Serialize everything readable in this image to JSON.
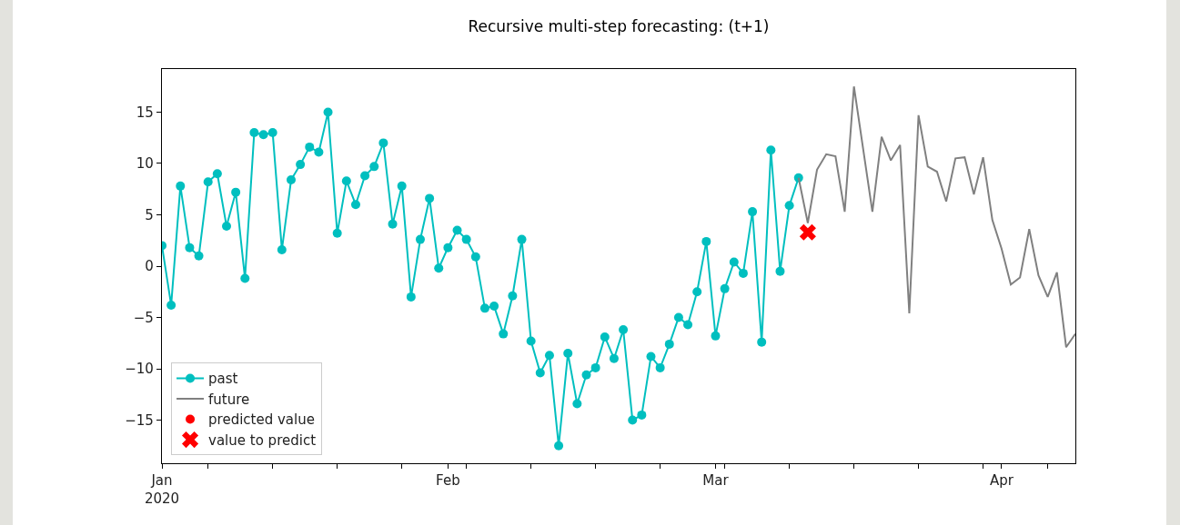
{
  "chart_data": {
    "type": "line",
    "title": "Recursive multi-step forecasting: (t+1)",
    "xlim": [
      "2020-01-01",
      "2020-04-09"
    ],
    "xticks": [
      {
        "value": "2020-01-01",
        "label": "Jan\n2020"
      },
      {
        "value": "2020-01-06",
        "label": null
      },
      {
        "value": "2020-01-13",
        "label": null
      },
      {
        "value": "2020-01-20",
        "label": null
      },
      {
        "value": "2020-01-27",
        "label": null
      },
      {
        "value": "2020-02-01",
        "label": "Feb"
      },
      {
        "value": "2020-02-03",
        "label": null
      },
      {
        "value": "2020-02-10",
        "label": null
      },
      {
        "value": "2020-02-17",
        "label": null
      },
      {
        "value": "2020-02-24",
        "label": null
      },
      {
        "value": "2020-03-01",
        "label": "Mar"
      },
      {
        "value": "2020-03-02",
        "label": null
      },
      {
        "value": "2020-03-09",
        "label": null
      },
      {
        "value": "2020-03-16",
        "label": null
      },
      {
        "value": "2020-03-23",
        "label": null
      },
      {
        "value": "2020-03-30",
        "label": null
      },
      {
        "value": "2020-04-01",
        "label": "Apr"
      },
      {
        "value": "2020-04-06",
        "label": null
      }
    ],
    "ylim": [
      -19.2,
      19.2
    ],
    "yticks": [
      {
        "value": -15,
        "label": "−15"
      },
      {
        "value": -10,
        "label": "−10"
      },
      {
        "value": -5,
        "label": "−5"
      },
      0,
      5,
      10,
      15
    ],
    "grid": false,
    "legend": "bottom left",
    "series": [
      {
        "name": "past",
        "marker": "circle",
        "color": "#00bfbf",
        "x": [
          "2020-01-01",
          "2020-01-02",
          "2020-01-03",
          "2020-01-04",
          "2020-01-05",
          "2020-01-06",
          "2020-01-07",
          "2020-01-08",
          "2020-01-09",
          "2020-01-10",
          "2020-01-11",
          "2020-01-12",
          "2020-01-13",
          "2020-01-14",
          "2020-01-15",
          "2020-01-16",
          "2020-01-17",
          "2020-01-18",
          "2020-01-19",
          "2020-01-20",
          "2020-01-21",
          "2020-01-22",
          "2020-01-23",
          "2020-01-24",
          "2020-01-25",
          "2020-01-26",
          "2020-01-27",
          "2020-01-28",
          "2020-01-29",
          "2020-01-30",
          "2020-01-31",
          "2020-02-01",
          "2020-02-02",
          "2020-02-03",
          "2020-02-04",
          "2020-02-05",
          "2020-02-06",
          "2020-02-07",
          "2020-02-08",
          "2020-02-09",
          "2020-02-10",
          "2020-02-11",
          "2020-02-12",
          "2020-02-13",
          "2020-02-14",
          "2020-02-15",
          "2020-02-16",
          "2020-02-17",
          "2020-02-18",
          "2020-02-19",
          "2020-02-20",
          "2020-02-21",
          "2020-02-22",
          "2020-02-23",
          "2020-02-24",
          "2020-02-25",
          "2020-02-26",
          "2020-02-27",
          "2020-02-28",
          "2020-02-29",
          "2020-03-01",
          "2020-03-02",
          "2020-03-03",
          "2020-03-04",
          "2020-03-05",
          "2020-03-06",
          "2020-03-07",
          "2020-03-08",
          "2020-03-09",
          "2020-03-10"
        ],
        "values": [
          2.0,
          -3.8,
          7.8,
          1.8,
          1.0,
          8.2,
          9.0,
          3.9,
          7.2,
          -1.2,
          13.0,
          12.8,
          13.0,
          1.6,
          8.4,
          9.9,
          11.6,
          11.1,
          15.0,
          3.2,
          8.3,
          6.0,
          8.8,
          9.7,
          12.0,
          4.1,
          7.8,
          -3.0,
          2.6,
          6.6,
          -0.2,
          1.8,
          3.5,
          2.6,
          0.9,
          -4.1,
          -3.9,
          -6.6,
          -2.9,
          2.6,
          -7.3,
          -10.4,
          -8.7,
          -17.5,
          -8.5,
          -13.4,
          -10.6,
          -9.9,
          -6.9,
          -9.0,
          -6.2,
          -15.0,
          -14.5,
          -8.8,
          -9.9,
          -7.6,
          -5.0,
          -5.7,
          -2.5,
          2.4,
          -6.8,
          -2.2,
          0.4,
          -0.7,
          5.3,
          -7.4,
          11.3,
          -0.5,
          5.9,
          8.6
        ]
      },
      {
        "name": "future",
        "marker": "none",
        "color": "#808080",
        "x": [
          "2020-03-10",
          "2020-03-11",
          "2020-03-12",
          "2020-03-13",
          "2020-03-14",
          "2020-03-15",
          "2020-03-16",
          "2020-03-17",
          "2020-03-18",
          "2020-03-19",
          "2020-03-20",
          "2020-03-21",
          "2020-03-22",
          "2020-03-23",
          "2020-03-24",
          "2020-03-25",
          "2020-03-26",
          "2020-03-27",
          "2020-03-28",
          "2020-03-29",
          "2020-03-30",
          "2020-03-31",
          "2020-04-01",
          "2020-04-02",
          "2020-04-03",
          "2020-04-04",
          "2020-04-05",
          "2020-04-06",
          "2020-04-07",
          "2020-04-08",
          "2020-04-09"
        ],
        "values": [
          8.6,
          4.2,
          9.4,
          10.9,
          10.7,
          5.3,
          17.5,
          11.4,
          5.3,
          12.6,
          10.3,
          11.8,
          -4.6,
          14.7,
          9.7,
          9.2,
          6.3,
          10.5,
          10.6,
          7.0,
          10.6,
          4.5,
          1.7,
          -1.8,
          -1.1,
          3.6,
          -0.9,
          -3.0,
          -0.6,
          -7.9,
          -6.6
        ]
      },
      {
        "name": "predicted value",
        "type": "scatter",
        "marker": "circle",
        "color": "#ff0000"
      },
      {
        "name": "value to predict",
        "type": "scatter",
        "marker": "cross",
        "color": "#ff0000",
        "x": [
          "2020-03-11"
        ],
        "values": [
          3.3
        ]
      }
    ]
  }
}
